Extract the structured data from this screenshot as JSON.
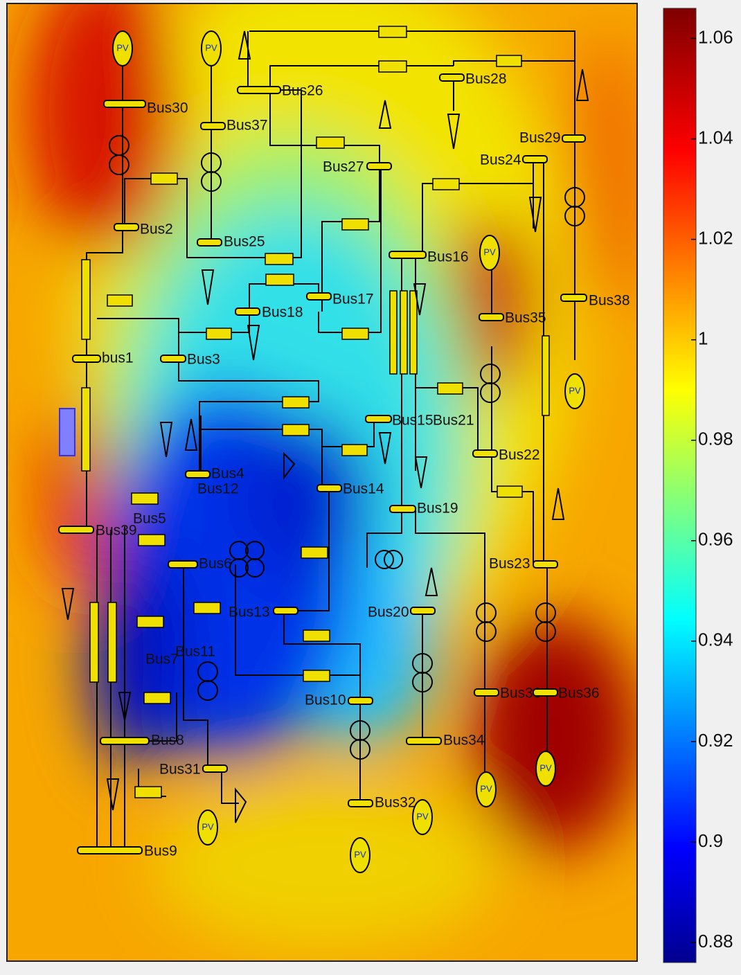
{
  "colorbar": {
    "range": [
      0.876,
      1.066
    ],
    "ticks": [
      0.88,
      0.9,
      0.92,
      0.94,
      0.96,
      0.98,
      1,
      1.02,
      1.04,
      1.06
    ]
  },
  "buses": [
    "Bus30",
    "Bus37",
    "Bus26",
    "Bus28",
    "Bus27",
    "Bus24",
    "Bus29",
    "Bus2",
    "Bus25",
    "Bus16",
    "Bus17",
    "Bus18",
    "Bus38",
    "Bus35",
    "bus1",
    "Bus3",
    "Bus15",
    "Bus21",
    "Bus4",
    "Bus12",
    "Bus14",
    "Bus22",
    "Bus19",
    "Bus39",
    "Bus5",
    "Bus6",
    "Bus23",
    "Bus13",
    "Bus20",
    "Bus7",
    "Bus11",
    "Bus10",
    "Bus33",
    "Bus36",
    "Bus34",
    "Bus8",
    "Bus31",
    "Bus32",
    "Bus9"
  ],
  "generator_label": "PV"
}
